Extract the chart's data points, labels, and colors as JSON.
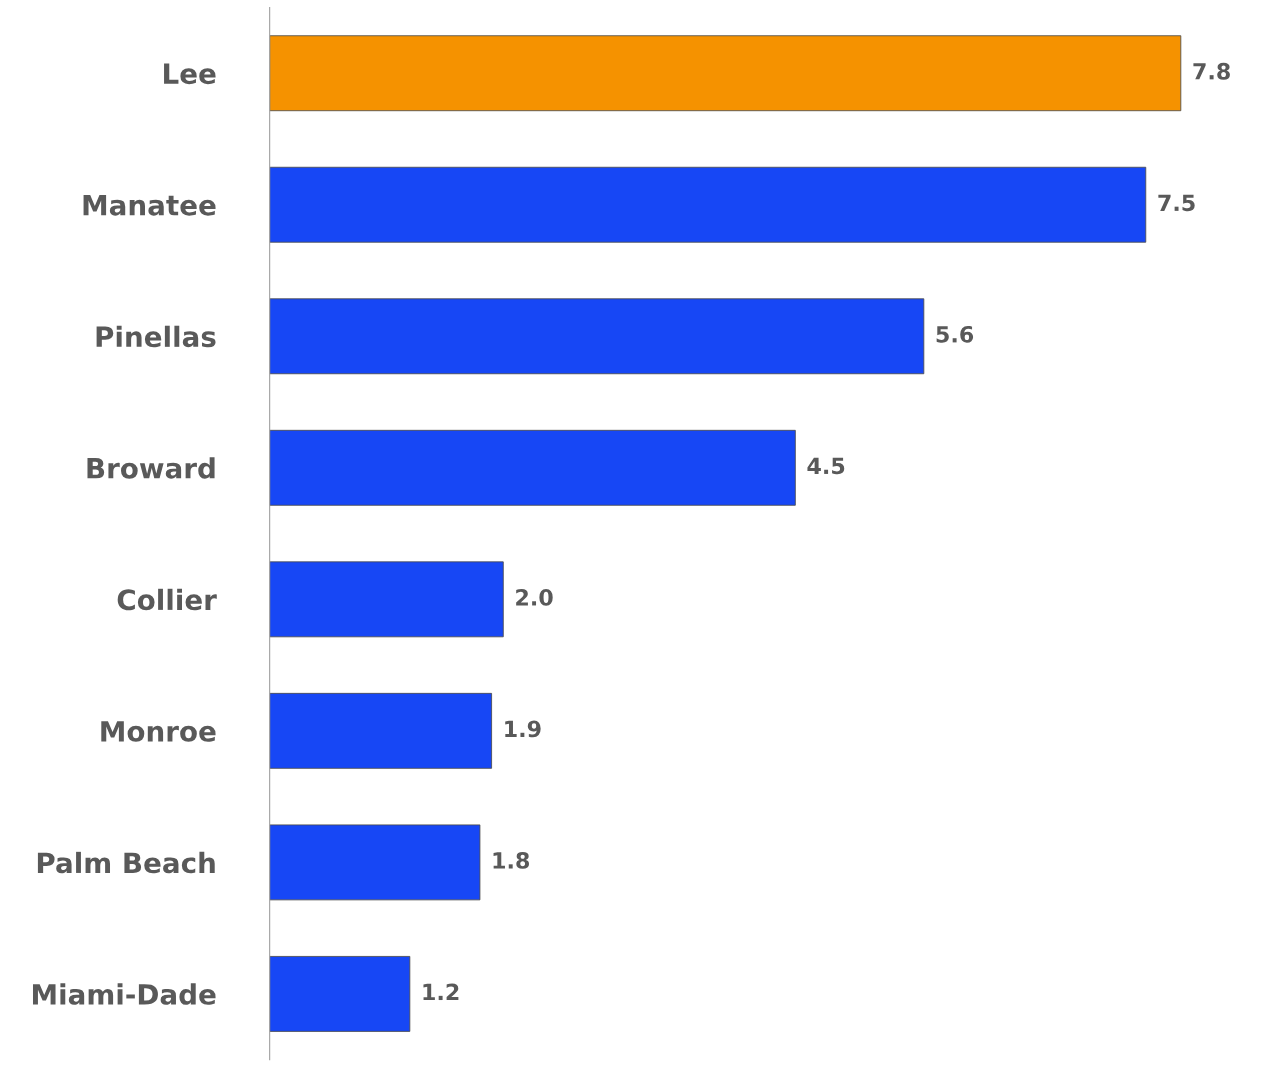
{
  "chart_data": {
    "type": "bar",
    "orientation": "horizontal",
    "categories": [
      "Lee",
      "Manatee",
      "Pinellas",
      "Broward",
      "Collier",
      "Monroe",
      "Palm Beach",
      "Miami-Dade"
    ],
    "values": [
      7.8,
      7.5,
      5.6,
      4.5,
      2.0,
      1.9,
      1.8,
      1.2
    ],
    "colors": [
      "#f59200",
      "#1747f5",
      "#1747f5",
      "#1747f5",
      "#1747f5",
      "#1747f5",
      "#1747f5",
      "#1747f5"
    ],
    "value_labels": [
      "7.8",
      "7.5",
      "5.6",
      "4.5",
      "2.0",
      "1.9",
      "1.8",
      "1.2"
    ],
    "grid": false,
    "legend": false
  }
}
